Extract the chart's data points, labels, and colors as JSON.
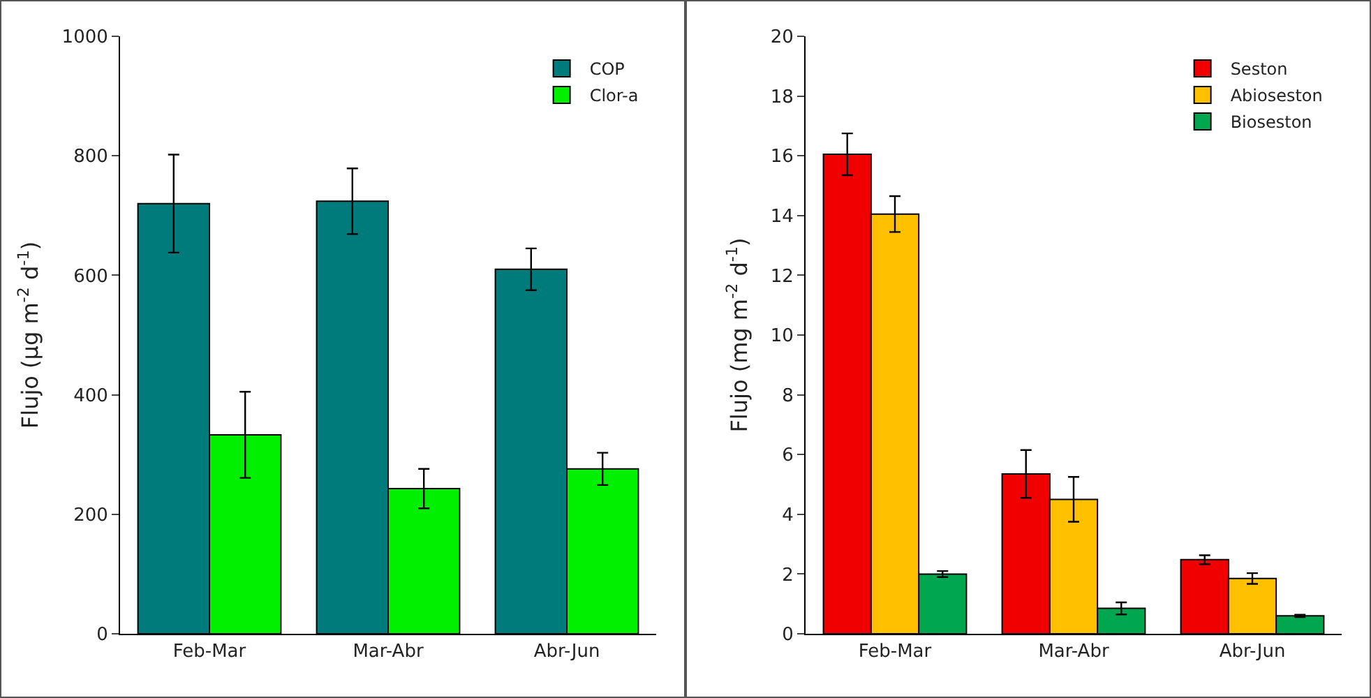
{
  "chart_data": [
    {
      "type": "bar",
      "ylabel": "Flujo (µg m$^{-2}$ d$^{-1}$)",
      "categories": [
        "Feb-Mar",
        "Mar-Abr",
        "Abr-Jun"
      ],
      "ylim": [
        0,
        1000
      ],
      "yticks": [
        0,
        200,
        400,
        600,
        800,
        1000
      ],
      "grid": false,
      "legend": "top right",
      "series": [
        {
          "name": "COP",
          "color": "#007b7b",
          "values": [
            720,
            724,
            610
          ],
          "errors": [
            82,
            55,
            35
          ]
        },
        {
          "name": "Clor-a",
          "color": "#00f000",
          "values": [
            333,
            243,
            276
          ],
          "errors": [
            72,
            33,
            27
          ]
        }
      ]
    },
    {
      "type": "bar",
      "ylabel": "Flujo (mg m$^{-2}$ d$^{-1}$)",
      "categories": [
        "Feb-Mar",
        "Mar-Abr",
        "Abr-Jun"
      ],
      "ylim": [
        0,
        20
      ],
      "yticks": [
        0,
        2,
        4,
        6,
        8,
        10,
        12,
        14,
        16,
        18,
        20
      ],
      "grid": false,
      "legend": "top right",
      "series": [
        {
          "name": "Seston",
          "color": "#f00000",
          "values": [
            16.05,
            5.35,
            2.48
          ],
          "errors": [
            0.7,
            0.8,
            0.15
          ]
        },
        {
          "name": "Abioseston",
          "color": "#ffc000",
          "values": [
            14.05,
            4.5,
            1.85
          ],
          "errors": [
            0.6,
            0.75,
            0.18
          ]
        },
        {
          "name": "Bioseston",
          "color": "#00a650",
          "values": [
            2.0,
            0.85,
            0.6
          ],
          "errors": [
            0.1,
            0.2,
            0.04
          ]
        }
      ]
    }
  ]
}
